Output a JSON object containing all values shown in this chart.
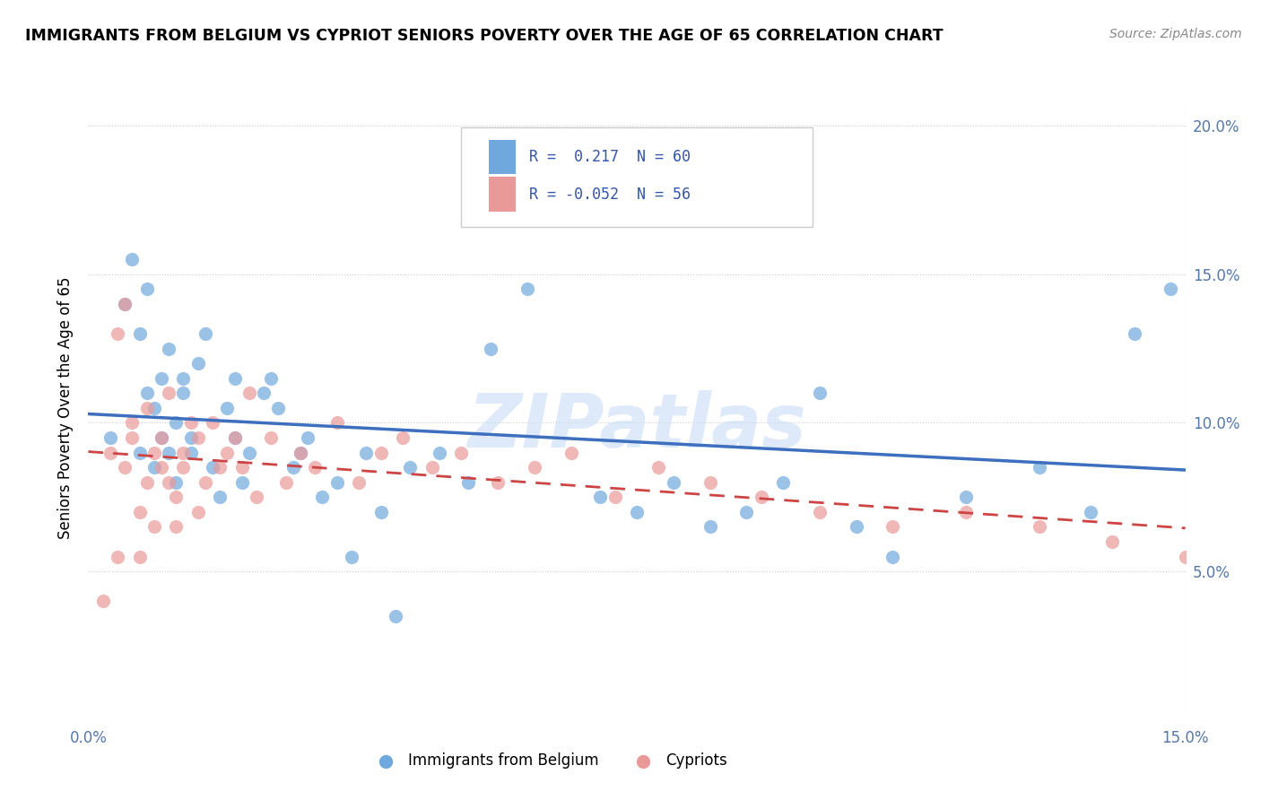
{
  "title": "IMMIGRANTS FROM BELGIUM VS CYPRIOT SENIORS POVERTY OVER THE AGE OF 65 CORRELATION CHART",
  "source": "Source: ZipAtlas.com",
  "ylabel": "Seniors Poverty Over the Age of 65",
  "x_min": 0.0,
  "x_max": 0.15,
  "y_min": 0.0,
  "y_max": 0.21,
  "belgium_color": "#6fa8dc",
  "cypriot_color": "#ea9999",
  "belgium_line_color": "#3d6fbe",
  "cypriot_line_color": "#cc4444",
  "legend_belgium_R": " 0.217",
  "legend_belgium_N": "60",
  "legend_cypriot_R": "-0.052",
  "legend_cypriot_N": "56",
  "watermark": "ZIPatlas",
  "belgium_scatter_x": [
    0.003,
    0.005,
    0.006,
    0.007,
    0.007,
    0.008,
    0.008,
    0.009,
    0.009,
    0.01,
    0.01,
    0.011,
    0.011,
    0.012,
    0.012,
    0.013,
    0.013,
    0.014,
    0.014,
    0.015,
    0.016,
    0.017,
    0.018,
    0.019,
    0.02,
    0.02,
    0.021,
    0.022,
    0.024,
    0.025,
    0.026,
    0.028,
    0.029,
    0.03,
    0.032,
    0.034,
    0.036,
    0.038,
    0.04,
    0.042,
    0.044,
    0.048,
    0.052,
    0.055,
    0.06,
    0.065,
    0.07,
    0.075,
    0.08,
    0.085,
    0.09,
    0.095,
    0.1,
    0.105,
    0.11,
    0.12,
    0.13,
    0.137,
    0.143,
    0.148
  ],
  "belgium_scatter_y": [
    0.095,
    0.14,
    0.155,
    0.13,
    0.09,
    0.145,
    0.11,
    0.085,
    0.105,
    0.095,
    0.115,
    0.09,
    0.125,
    0.1,
    0.08,
    0.11,
    0.115,
    0.095,
    0.09,
    0.12,
    0.13,
    0.085,
    0.075,
    0.105,
    0.115,
    0.095,
    0.08,
    0.09,
    0.11,
    0.115,
    0.105,
    0.085,
    0.09,
    0.095,
    0.075,
    0.08,
    0.055,
    0.09,
    0.07,
    0.035,
    0.085,
    0.09,
    0.08,
    0.125,
    0.145,
    0.19,
    0.075,
    0.07,
    0.08,
    0.065,
    0.07,
    0.08,
    0.11,
    0.065,
    0.055,
    0.075,
    0.085,
    0.07,
    0.13,
    0.145
  ],
  "cypriot_scatter_x": [
    0.002,
    0.003,
    0.004,
    0.004,
    0.005,
    0.005,
    0.006,
    0.006,
    0.007,
    0.007,
    0.008,
    0.008,
    0.009,
    0.009,
    0.01,
    0.01,
    0.011,
    0.011,
    0.012,
    0.012,
    0.013,
    0.013,
    0.014,
    0.015,
    0.015,
    0.016,
    0.017,
    0.018,
    0.019,
    0.02,
    0.021,
    0.022,
    0.023,
    0.025,
    0.027,
    0.029,
    0.031,
    0.034,
    0.037,
    0.04,
    0.043,
    0.047,
    0.051,
    0.056,
    0.061,
    0.066,
    0.072,
    0.078,
    0.085,
    0.092,
    0.1,
    0.11,
    0.12,
    0.13,
    0.14,
    0.15
  ],
  "cypriot_scatter_y": [
    0.04,
    0.09,
    0.055,
    0.13,
    0.085,
    0.14,
    0.095,
    0.1,
    0.07,
    0.055,
    0.08,
    0.105,
    0.09,
    0.065,
    0.095,
    0.085,
    0.08,
    0.11,
    0.065,
    0.075,
    0.085,
    0.09,
    0.1,
    0.07,
    0.095,
    0.08,
    0.1,
    0.085,
    0.09,
    0.095,
    0.085,
    0.11,
    0.075,
    0.095,
    0.08,
    0.09,
    0.085,
    0.1,
    0.08,
    0.09,
    0.095,
    0.085,
    0.09,
    0.08,
    0.085,
    0.09,
    0.075,
    0.085,
    0.08,
    0.075,
    0.07,
    0.065,
    0.07,
    0.065,
    0.06,
    0.055
  ]
}
